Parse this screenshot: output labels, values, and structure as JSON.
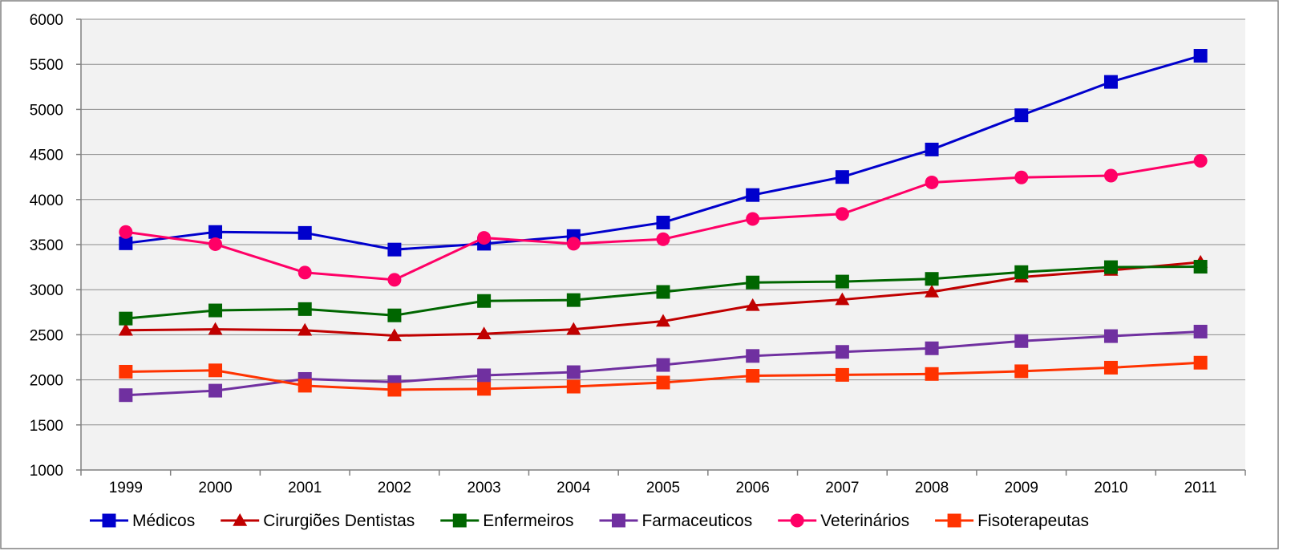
{
  "chart_data": {
    "type": "line",
    "title": "",
    "xlabel": "",
    "ylabel": "",
    "x": [
      "1999",
      "2000",
      "2001",
      "2002",
      "2003",
      "2004",
      "2005",
      "2006",
      "2007",
      "2008",
      "2009",
      "2010",
      "2011"
    ],
    "ylim": [
      1000,
      6000
    ],
    "yticks": [
      1000,
      1500,
      2000,
      2500,
      3000,
      3500,
      4000,
      4500,
      5000,
      5500,
      6000
    ],
    "grid": true,
    "plot_background": "#f2f2f2",
    "legend": "bottom",
    "series": [
      {
        "name": "Médicos",
        "color": "#0000cc",
        "marker": "square",
        "values": [
          3515,
          3640,
          3630,
          3445,
          3510,
          3595,
          3745,
          4050,
          4250,
          4555,
          4935,
          5305,
          5595
        ]
      },
      {
        "name": "Cirurgiões Dentistas",
        "color": "#c00000",
        "marker": "triangle",
        "values": [
          2550,
          2560,
          2550,
          2490,
          2510,
          2560,
          2650,
          2825,
          2890,
          2975,
          3140,
          3215,
          3305
        ]
      },
      {
        "name": "Enfermeiros",
        "color": "#006600",
        "marker": "square",
        "values": [
          2680,
          2770,
          2785,
          2715,
          2875,
          2885,
          2975,
          3080,
          3090,
          3120,
          3195,
          3250,
          3255
        ]
      },
      {
        "name": "Farmaceuticos",
        "color": "#7030a0",
        "marker": "square",
        "values": [
          1830,
          1880,
          2010,
          1975,
          2050,
          2085,
          2165,
          2265,
          2310,
          2350,
          2430,
          2485,
          2535
        ]
      },
      {
        "name": "Veterinários",
        "color": "#ff0066",
        "marker": "circle",
        "values": [
          3640,
          3505,
          3190,
          3110,
          3575,
          3510,
          3560,
          3785,
          3840,
          4190,
          4245,
          4265,
          4430
        ]
      },
      {
        "name": "Fisoterapeutas",
        "color": "#ff3300",
        "marker": "square",
        "values": [
          2090,
          2105,
          1935,
          1890,
          1900,
          1925,
          1970,
          2045,
          2055,
          2065,
          2095,
          2135,
          2190
        ]
      }
    ]
  }
}
